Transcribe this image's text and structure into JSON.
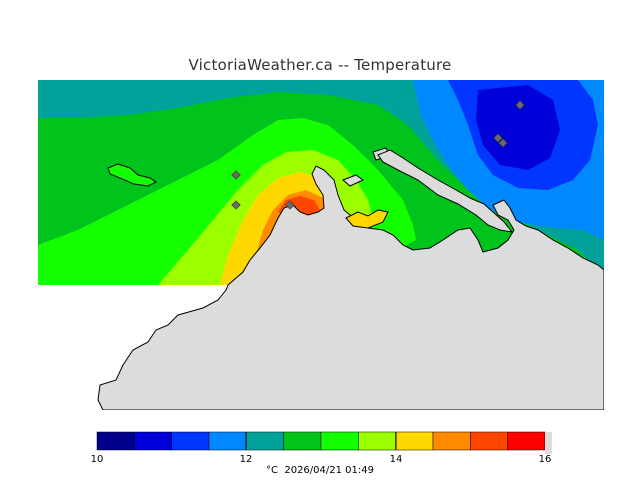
{
  "title": "VictoriaWeather.ca  --  Temperature",
  "legend": {
    "ticks": [
      "10",
      "12",
      "14",
      "16"
    ],
    "unit": "°C",
    "timestamp": "2026/04/21 01:49",
    "bins": [
      {
        "color": "#00008b"
      },
      {
        "color": "#0000d8"
      },
      {
        "color": "#0036ff"
      },
      {
        "color": "#0088ff"
      },
      {
        "color": "#00a29a"
      },
      {
        "color": "#00c31c"
      },
      {
        "color": "#14ff00"
      },
      {
        "color": "#9cff00"
      },
      {
        "color": "#ffd800"
      },
      {
        "color": "#ff8c00"
      },
      {
        "color": "#ff4600"
      },
      {
        "color": "#ff0000"
      }
    ],
    "range": [
      10,
      16
    ]
  },
  "colors": {
    "land": "#dcdcdc",
    "coast": "#000000",
    "station": "#6a6a6a"
  }
}
